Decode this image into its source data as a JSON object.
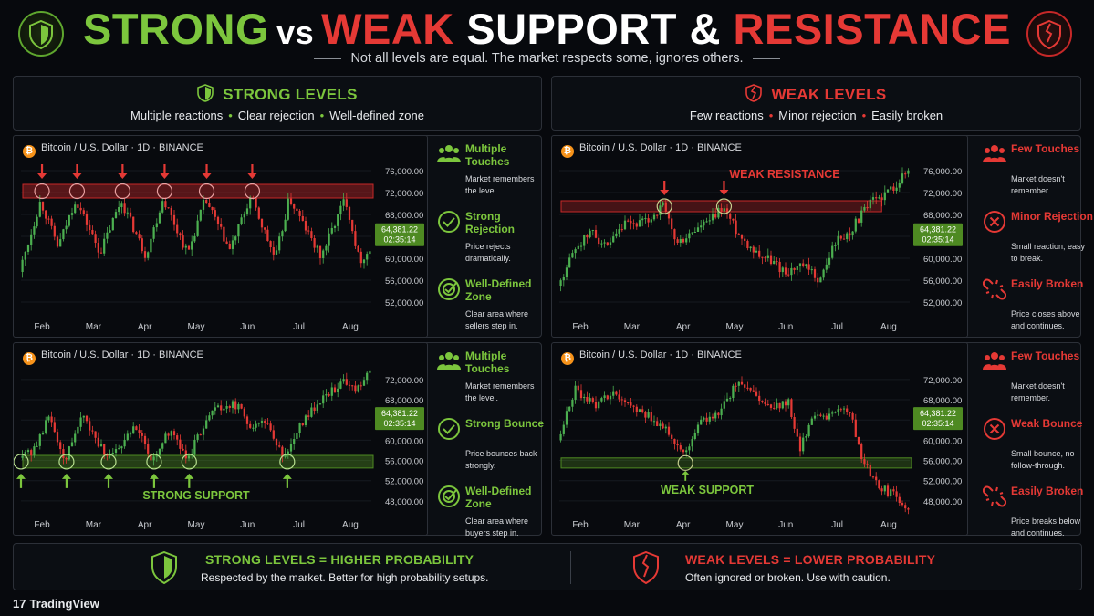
{
  "title": {
    "strong": "STRONG",
    "vs": "vs",
    "weak": "WEAK",
    "support": "SUPPORT &",
    "resistance": "RESISTANCE"
  },
  "subtitle": "Not all levels are equal. The market respects some, ignores others.",
  "strong_header": {
    "title": "STRONG LEVELS",
    "points": [
      "Multiple reactions",
      "Clear rejection",
      "Well-defined zone"
    ]
  },
  "weak_header": {
    "title": "WEAK LEVELS",
    "points": [
      "Few reactions",
      "Minor rejection",
      "Easily broken"
    ]
  },
  "chart_label": "Bitcoin / U.S. Dollar · 1D · BINANCE",
  "price_tag": {
    "price": "64,381.22",
    "time": "02:35:14"
  },
  "colors": {
    "bull": "#4caf50",
    "bear": "#e53935",
    "accent_green": "#7cc63d",
    "accent_red": "#e53935"
  },
  "chart_data": [
    {
      "type": "candlestick",
      "panel": "strong-resistance",
      "x_ticks": [
        "Feb",
        "Mar",
        "Apr",
        "May",
        "Jun",
        "Jul",
        "Aug"
      ],
      "y_ticks": [
        "76,000.00",
        "72,000.00",
        "68,000.00",
        "64,000.00",
        "60,000.00",
        "56,000.00",
        "52,000.00"
      ],
      "ylim": [
        50000,
        78000
      ],
      "zone": [
        71000,
        73500
      ],
      "zone_label": "",
      "touches": 6,
      "path": [
        [
          0,
          57500
        ],
        [
          6,
          70500
        ],
        [
          11,
          62000
        ],
        [
          16,
          70800
        ],
        [
          23,
          61000
        ],
        [
          29,
          70600
        ],
        [
          36,
          60500
        ],
        [
          41,
          71000
        ],
        [
          48,
          60800
        ],
        [
          53,
          70800
        ],
        [
          60,
          61500
        ],
        [
          66,
          71200
        ],
        [
          73,
          59800
        ],
        [
          77,
          71000
        ],
        [
          86,
          60200
        ],
        [
          93,
          71100
        ],
        [
          97,
          59500
        ],
        [
          100,
          61500
        ]
      ]
    },
    {
      "type": "candlestick",
      "panel": "strong-support",
      "x_ticks": [
        "Feb",
        "Mar",
        "Apr",
        "May",
        "Jun",
        "Jul",
        "Aug"
      ],
      "y_ticks": [
        "72,000.00",
        "68,000.00",
        "64,000.00",
        "60,000.00",
        "56,000.00",
        "52,000.00",
        "48,000.00"
      ],
      "ylim": [
        46000,
        74500
      ],
      "zone": [
        54500,
        57000
      ],
      "zone_label": "STRONG SUPPORT",
      "touches": 6,
      "path": [
        [
          0,
          56500
        ],
        [
          5,
          58500
        ],
        [
          8,
          65000
        ],
        [
          13,
          56200
        ],
        [
          18,
          65000
        ],
        [
          25,
          56200
        ],
        [
          33,
          62500
        ],
        [
          38,
          56200
        ],
        [
          43,
          62000
        ],
        [
          48,
          56300
        ],
        [
          55,
          66500
        ],
        [
          62,
          67000
        ],
        [
          66,
          62500
        ],
        [
          70,
          64000
        ],
        [
          76,
          56300
        ],
        [
          80,
          63000
        ],
        [
          86,
          68000
        ],
        [
          92,
          71500
        ],
        [
          96,
          70500
        ],
        [
          100,
          73000
        ]
      ]
    },
    {
      "type": "candlestick",
      "panel": "weak-resistance",
      "x_ticks": [
        "Feb",
        "Mar",
        "Apr",
        "May",
        "Jun",
        "Jul",
        "Aug"
      ],
      "y_ticks": [
        "76,000.00",
        "72,000.00",
        "68,000.00",
        "64,000.00",
        "60,000.00",
        "56,000.00",
        "52,000.00"
      ],
      "ylim": [
        50000,
        78000
      ],
      "zone": [
        68500,
        70500
      ],
      "zone_label": "WEAK RESISTANCE",
      "touches": 2,
      "path": [
        [
          0,
          55000
        ],
        [
          5,
          62000
        ],
        [
          10,
          65000
        ],
        [
          14,
          61500
        ],
        [
          19,
          66000
        ],
        [
          25,
          66500
        ],
        [
          30,
          69500
        ],
        [
          34,
          62500
        ],
        [
          40,
          65500
        ],
        [
          44,
          67000
        ],
        [
          47,
          69500
        ],
        [
          52,
          64000
        ],
        [
          57,
          61000
        ],
        [
          61,
          59500
        ],
        [
          65,
          57500
        ],
        [
          70,
          58500
        ],
        [
          75,
          56000
        ],
        [
          79,
          63000
        ],
        [
          83,
          64500
        ],
        [
          86,
          67500
        ],
        [
          90,
          70500
        ],
        [
          94,
          72000
        ],
        [
          100,
          76000
        ]
      ]
    },
    {
      "type": "candlestick",
      "panel": "weak-support",
      "x_ticks": [
        "Feb",
        "Mar",
        "Apr",
        "May",
        "Jun",
        "Jul",
        "Aug"
      ],
      "y_ticks": [
        "72,000.00",
        "68,000.00",
        "64,000.00",
        "60,000.00",
        "56,000.00",
        "52,000.00",
        "48,000.00"
      ],
      "ylim": [
        46000,
        74500
      ],
      "zone": [
        54500,
        56500
      ],
      "zone_label": "WEAK SUPPORT",
      "touches": 3,
      "path": [
        [
          0,
          60000
        ],
        [
          5,
          70000
        ],
        [
          11,
          67000
        ],
        [
          16,
          70000
        ],
        [
          21,
          66500
        ],
        [
          26,
          65000
        ],
        [
          31,
          62000
        ],
        [
          36,
          57000
        ],
        [
          41,
          64000
        ],
        [
          46,
          65000
        ],
        [
          51,
          71500
        ],
        [
          56,
          69000
        ],
        [
          61,
          66500
        ],
        [
          66,
          67500
        ],
        [
          69,
          58000
        ],
        [
          73,
          65000
        ],
        [
          78,
          64500
        ],
        [
          83,
          66500
        ],
        [
          86,
          58000
        ],
        [
          91,
          51000
        ],
        [
          95,
          49500
        ],
        [
          100,
          47000
        ]
      ]
    }
  ],
  "strong_features_top": [
    {
      "icon": "group-icon",
      "title": "Multiple Touches",
      "desc": "Market remembers the level."
    },
    {
      "icon": "check-circle-icon",
      "title": "Strong Rejection",
      "desc": "Price rejects dramatically."
    },
    {
      "icon": "target-icon",
      "title": "Well-Defined Zone",
      "desc": "Clear area where sellers step in."
    }
  ],
  "strong_features_bottom": [
    {
      "icon": "group-icon",
      "title": "Multiple Touches",
      "desc": "Market remembers the level."
    },
    {
      "icon": "check-circle-icon",
      "title": "Strong Bounce",
      "desc": "Price bounces back strongly."
    },
    {
      "icon": "target-icon",
      "title": "Well-Defined Zone",
      "desc": "Clear area where buyers step in."
    }
  ],
  "weak_features_top": [
    {
      "icon": "group-icon",
      "title": "Few Touches",
      "desc": "Market doesn't remember."
    },
    {
      "icon": "x-circle-icon",
      "title": "Minor Rejection",
      "desc": "Small reaction, easy to break."
    },
    {
      "icon": "broken-link-icon",
      "title": "Easily Broken",
      "desc": "Price closes above and continues."
    }
  ],
  "weak_features_bottom": [
    {
      "icon": "group-icon",
      "title": "Few Touches",
      "desc": "Market doesn't remember."
    },
    {
      "icon": "x-circle-icon",
      "title": "Weak Bounce",
      "desc": "Small bounce, no follow-through."
    },
    {
      "icon": "broken-link-icon",
      "title": "Easily Broken",
      "desc": "Price breaks below and continues."
    }
  ],
  "bottom": {
    "strong_title": "STRONG LEVELS = HIGHER PROBABILITY",
    "strong_sub": "Respected by the market. Better for high probability setups.",
    "weak_title": "WEAK LEVELS = LOWER PROBABILITY",
    "weak_sub": "Often ignored or broken. Use with caution."
  },
  "brand": "TradingView"
}
